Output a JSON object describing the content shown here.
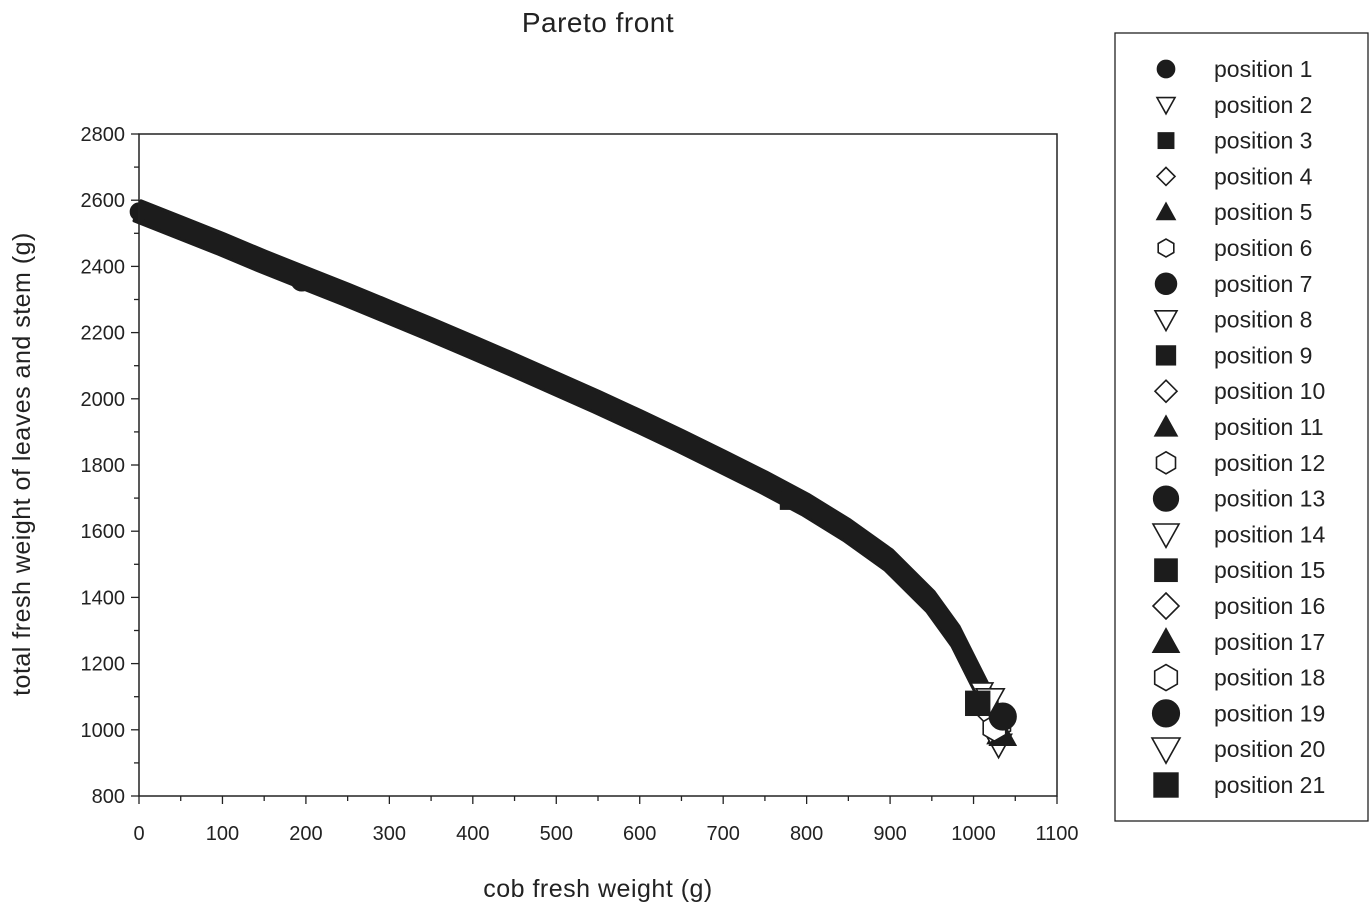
{
  "chart_data": {
    "type": "scatter",
    "title": "Pareto front",
    "xlabel": "cob fresh weight (g)",
    "ylabel": "total fresh weight of leaves and stem (g)",
    "xlim": [
      0,
      1100
    ],
    "ylim": [
      800,
      2800
    ],
    "xticks": [
      0,
      100,
      200,
      300,
      400,
      500,
      600,
      700,
      800,
      900,
      1000,
      1100
    ],
    "yticks": [
      800,
      1000,
      1200,
      1400,
      1600,
      1800,
      2000,
      2200,
      2400,
      2600,
      2800
    ],
    "grid": false,
    "legend_position": "right",
    "front_curve": [
      [
        0,
        2565
      ],
      [
        50,
        2515
      ],
      [
        100,
        2465
      ],
      [
        150,
        2412
      ],
      [
        200,
        2362
      ],
      [
        250,
        2312
      ],
      [
        300,
        2260
      ],
      [
        350,
        2208
      ],
      [
        400,
        2154
      ],
      [
        450,
        2100
      ],
      [
        500,
        2044
      ],
      [
        550,
        1988
      ],
      [
        600,
        1930
      ],
      [
        650,
        1870
      ],
      [
        700,
        1808
      ],
      [
        750,
        1745
      ],
      [
        800,
        1678
      ],
      [
        850,
        1600
      ],
      [
        900,
        1510
      ],
      [
        950,
        1385
      ],
      [
        980,
        1280
      ],
      [
        1000,
        1180
      ],
      [
        1020,
        1080
      ],
      [
        1035,
        985
      ]
    ],
    "series": [
      {
        "name": "position 1",
        "marker": "circle",
        "filled": true,
        "size": "small",
        "points": [
          [
            0,
            2565
          ]
        ]
      },
      {
        "name": "position 2",
        "marker": "triangle-down",
        "filled": false,
        "size": "small",
        "points": [
          [
            1025,
            1050
          ]
        ]
      },
      {
        "name": "position 3",
        "marker": "square",
        "filled": true,
        "size": "small",
        "points": [
          [
            1020,
            1075
          ]
        ]
      },
      {
        "name": "position 4",
        "marker": "diamond",
        "filled": false,
        "size": "small",
        "points": [
          [
            1030,
            1020
          ]
        ]
      },
      {
        "name": "position 5",
        "marker": "triangle-up",
        "filled": true,
        "size": "small",
        "points": [
          [
            1030,
            990
          ]
        ]
      },
      {
        "name": "position 6",
        "marker": "hexagon",
        "filled": false,
        "size": "small",
        "points": [
          [
            1035,
            1010
          ]
        ]
      },
      {
        "name": "position 7",
        "marker": "circle",
        "filled": true,
        "size": "medium",
        "points": [
          [
            195,
            2358
          ]
        ]
      },
      {
        "name": "position 8",
        "marker": "triangle-down",
        "filled": false,
        "size": "medium",
        "points": [
          [
            1010,
            1115
          ]
        ]
      },
      {
        "name": "position 9",
        "marker": "square",
        "filled": true,
        "size": "medium",
        "points": [
          [
            780,
            1695
          ]
        ]
      },
      {
        "name": "position 10",
        "marker": "diamond",
        "filled": false,
        "size": "medium",
        "points": [
          [
            1025,
            1005
          ]
        ]
      },
      {
        "name": "position 11",
        "marker": "triangle-up",
        "filled": true,
        "size": "medium",
        "points": [
          [
            1030,
            985
          ]
        ]
      },
      {
        "name": "position 12",
        "marker": "hexagon",
        "filled": false,
        "size": "medium",
        "points": [
          [
            1025,
            1000
          ]
        ]
      },
      {
        "name": "position 13",
        "marker": "circle",
        "filled": true,
        "size": "large",
        "points": [
          [
            1030,
            1030
          ]
        ]
      },
      {
        "name": "position 14",
        "marker": "triangle-down",
        "filled": false,
        "size": "large",
        "points": [
          [
            1030,
            955
          ]
        ]
      },
      {
        "name": "position 15",
        "marker": "square",
        "filled": true,
        "size": "large",
        "points": [
          [
            1005,
            1080
          ]
        ]
      },
      {
        "name": "position 16",
        "marker": "diamond",
        "filled": false,
        "size": "large",
        "points": [
          [
            1020,
            1045
          ]
        ]
      },
      {
        "name": "position 17",
        "marker": "triangle-up",
        "filled": true,
        "size": "large",
        "points": [
          [
            1035,
            985
          ]
        ]
      },
      {
        "name": "position 18",
        "marker": "hexagon",
        "filled": false,
        "size": "large",
        "points": [
          [
            1025,
            1005
          ]
        ]
      },
      {
        "name": "position 19",
        "marker": "circle",
        "filled": true,
        "size": "xlarge",
        "points": [
          [
            1035,
            1040
          ]
        ]
      },
      {
        "name": "position 20",
        "marker": "triangle-down",
        "filled": false,
        "size": "xlarge",
        "points": [
          [
            1020,
            1090
          ]
        ]
      },
      {
        "name": "position 21",
        "marker": "square",
        "filled": true,
        "size": "xlarge",
        "points": [
          [
            1005,
            1080
          ]
        ]
      }
    ],
    "colors": {
      "marker": "#1c1c1c",
      "axis": "#222222",
      "background": "#ffffff"
    }
  }
}
